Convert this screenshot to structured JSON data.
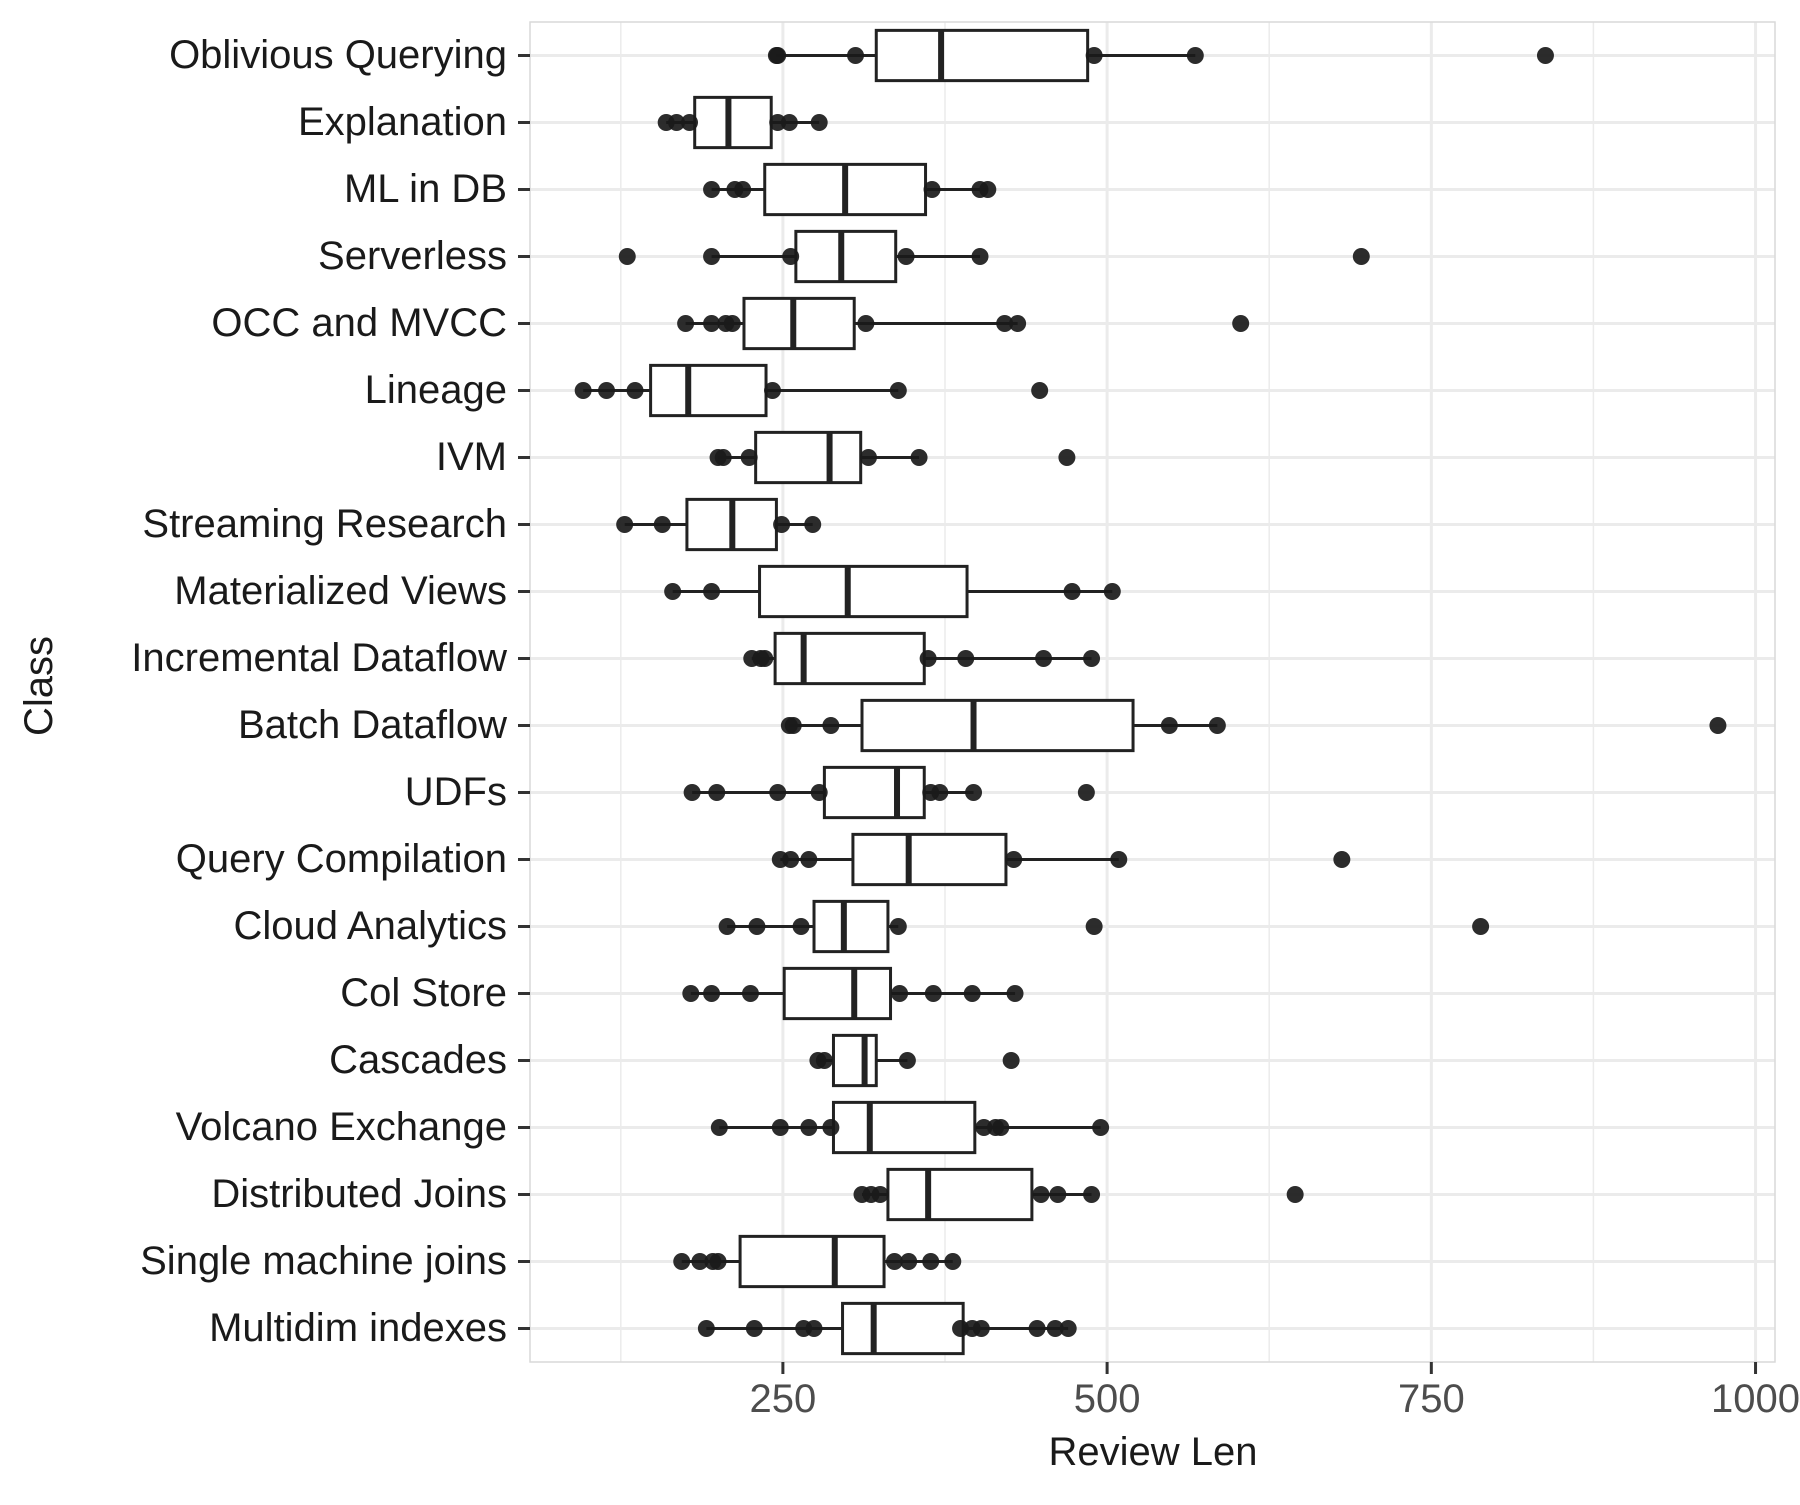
{
  "chart_data": {
    "type": "boxplot",
    "orientation": "horizontal",
    "xlabel": "Review Len",
    "ylabel": "Class",
    "xlim": [
      55,
      1015
    ],
    "xticks": [
      250,
      500,
      750,
      1000
    ],
    "xtick_labels": [
      "250",
      "500",
      "750",
      "1000"
    ],
    "grid": true,
    "categories": [
      "Oblivious Querying",
      "Explanation",
      "ML in DB",
      "Serverless",
      "OCC and MVCC",
      "Lineage",
      "IVM",
      "Streaming Research",
      "Materialized Views",
      "Incremental Dataflow",
      "Batch Dataflow",
      "UDFs",
      "Query Compilation",
      "Cloud Analytics",
      "Col Store",
      "Cascades",
      "Volcano Exchange",
      "Distributed Joins",
      "Single machine joins",
      "Multidim indexes"
    ],
    "boxes": [
      {
        "category": "Oblivious Querying",
        "whisker_low": 245,
        "q1": 322,
        "median": 372,
        "q3": 485,
        "whisker_high": 568,
        "points": [
          245,
          246,
          306,
          490,
          568,
          838
        ]
      },
      {
        "category": "Explanation",
        "whisker_low": 160,
        "q1": 182,
        "median": 208,
        "q3": 241,
        "whisker_high": 278,
        "points": [
          160,
          168,
          178,
          246,
          255,
          278
        ]
      },
      {
        "category": "ML in DB",
        "whisker_low": 195,
        "q1": 236,
        "median": 298,
        "q3": 360,
        "whisker_high": 408,
        "points": [
          195,
          213,
          219,
          365,
          402,
          408
        ]
      },
      {
        "category": "Serverless",
        "whisker_low": 195,
        "q1": 260,
        "median": 295,
        "q3": 337,
        "whisker_high": 402,
        "points": [
          130,
          195,
          256,
          345,
          402,
          696
        ]
      },
      {
        "category": "OCC and MVCC",
        "whisker_low": 175,
        "q1": 220,
        "median": 258,
        "q3": 305,
        "whisker_high": 431,
        "points": [
          175,
          195,
          206,
          211,
          314,
          421,
          431,
          603
        ]
      },
      {
        "category": "Lineage",
        "whisker_low": 96,
        "q1": 148,
        "median": 177,
        "q3": 237,
        "whisker_high": 339,
        "points": [
          96,
          114,
          136,
          242,
          339,
          448
        ]
      },
      {
        "category": "IVM",
        "whisker_low": 200,
        "q1": 229,
        "median": 286,
        "q3": 310,
        "whisker_high": 355,
        "points": [
          200,
          204,
          224,
          316,
          355,
          469
        ]
      },
      {
        "category": "Streaming Research",
        "whisker_low": 128,
        "q1": 176,
        "median": 211,
        "q3": 245,
        "whisker_high": 273,
        "points": [
          128,
          157,
          249,
          273
        ]
      },
      {
        "category": "Materialized Views",
        "whisker_low": 165,
        "q1": 232,
        "median": 300,
        "q3": 392,
        "whisker_high": 504,
        "points": [
          165,
          195,
          473,
          504
        ]
      },
      {
        "category": "Incremental Dataflow",
        "whisker_low": 226,
        "q1": 244,
        "median": 266,
        "q3": 359,
        "whisker_high": 488,
        "points": [
          226,
          233,
          236,
          362,
          391,
          451,
          488
        ]
      },
      {
        "category": "Batch Dataflow",
        "whisker_low": 255,
        "q1": 311,
        "median": 397,
        "q3": 520,
        "whisker_high": 585,
        "points": [
          255,
          258,
          287,
          548,
          585,
          971
        ]
      },
      {
        "category": "UDFs",
        "whisker_low": 180,
        "q1": 282,
        "median": 338,
        "q3": 359,
        "whisker_high": 397,
        "points": [
          180,
          199,
          246,
          278,
          364,
          371,
          397,
          484
        ]
      },
      {
        "category": "Query Compilation",
        "whisker_low": 248,
        "q1": 304,
        "median": 347,
        "q3": 422,
        "whisker_high": 509,
        "points": [
          248,
          256,
          270,
          428,
          509,
          681
        ]
      },
      {
        "category": "Cloud Analytics",
        "whisker_low": 207,
        "q1": 274,
        "median": 297,
        "q3": 331,
        "whisker_high": 339,
        "points": [
          207,
          230,
          264,
          339,
          490,
          788
        ]
      },
      {
        "category": "Col Store",
        "whisker_low": 179,
        "q1": 251,
        "median": 305,
        "q3": 333,
        "whisker_high": 429,
        "points": [
          179,
          195,
          225,
          340,
          366,
          396,
          429
        ]
      },
      {
        "category": "Cascades",
        "whisker_low": 277,
        "q1": 289,
        "median": 313,
        "q3": 322,
        "whisker_high": 346,
        "points": [
          277,
          282,
          346,
          426
        ]
      },
      {
        "category": "Volcano Exchange",
        "whisker_low": 201,
        "q1": 289,
        "median": 317,
        "q3": 398,
        "whisker_high": 495,
        "points": [
          201,
          248,
          270,
          287,
          405,
          414,
          418,
          495
        ]
      },
      {
        "category": "Distributed Joins",
        "whisker_low": 311,
        "q1": 331,
        "median": 362,
        "q3": 442,
        "whisker_high": 488,
        "points": [
          311,
          318,
          325,
          449,
          462,
          488,
          645
        ]
      },
      {
        "category": "Single machine joins",
        "whisker_low": 172,
        "q1": 217,
        "median": 290,
        "q3": 328,
        "whisker_high": 381,
        "points": [
          172,
          186,
          196,
          200,
          336,
          347,
          364,
          381
        ]
      },
      {
        "category": "Multidim indexes",
        "whisker_low": 191,
        "q1": 296,
        "median": 320,
        "q3": 389,
        "whisker_high": 470,
        "points": [
          191,
          228,
          266,
          274,
          387,
          396,
          403,
          446,
          460,
          470
        ]
      }
    ],
    "colors": {
      "box_stroke": "#222222",
      "point": "#1a1a1a",
      "grid": "#ebebeb",
      "panel_border": "#d9d9d9"
    }
  }
}
